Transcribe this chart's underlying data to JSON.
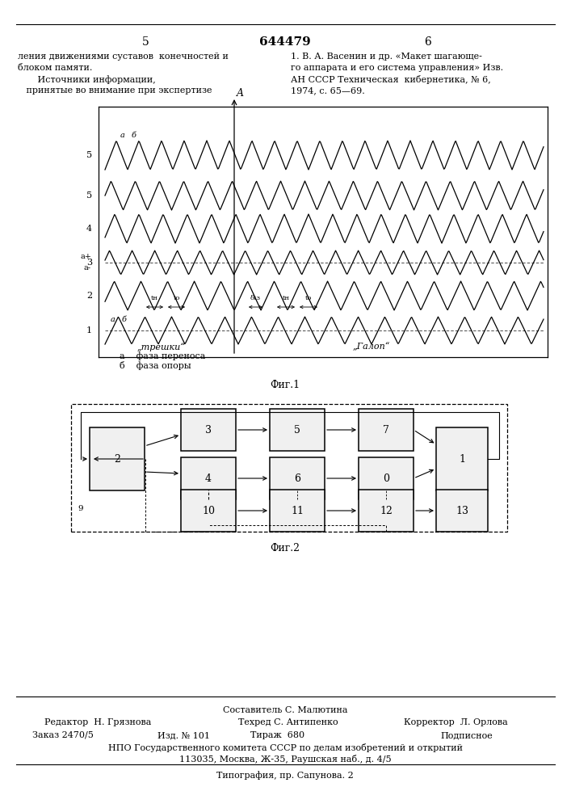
{
  "title": "644479",
  "page_left": "5",
  "page_right": "6",
  "text_left_1": "ления движениями суставов  конечностей и",
  "text_left_2": "блоком памяти.",
  "text_left_3": "       Источники информации,",
  "text_left_4": "   принятые во внимание при экспертизе",
  "text_right_1": "1. В. А. Васенин и др. «Макет шагающе-",
  "text_right_2": "го аппарата и его система управления» Изв.",
  "text_right_3": "АН СССР Техническая  кибернетика, № 6,",
  "text_right_4": "1974, с. 65—69.",
  "fig1_caption": "Фиг.1",
  "fig2_caption": "Фиг.2",
  "fig1_label_A": "A",
  "fig1_text_treshki": "„трешки“",
  "fig1_text_a": "а    фаза переноса",
  "fig1_text_b": "б    фаза опоры",
  "fig1_text_galop": "„Галоп“",
  "footer_compositor": "Составитель С. Малютина",
  "footer_editor": "Редактор  Н. Грязнова",
  "footer_techred": "Техред С. Антипенко",
  "footer_corrector": "Корректор  Л. Орлова",
  "footer_order": "Заказ 2470/5",
  "footer_izd": "Изд. № 101",
  "footer_tirazh": "Тираж  680",
  "footer_podpisnoe": "Подписное",
  "footer_npo": "НПО Государственного комитета СССР по делам изобретений и открытий",
  "footer_address": "113035, Москва, Ж-35, Раушская наб., д. 4/5",
  "footer_typography": "Типография, пр. Сапунова. 2",
  "bg_color": "#ffffff",
  "line_color": "#000000",
  "text_color": "#000000"
}
